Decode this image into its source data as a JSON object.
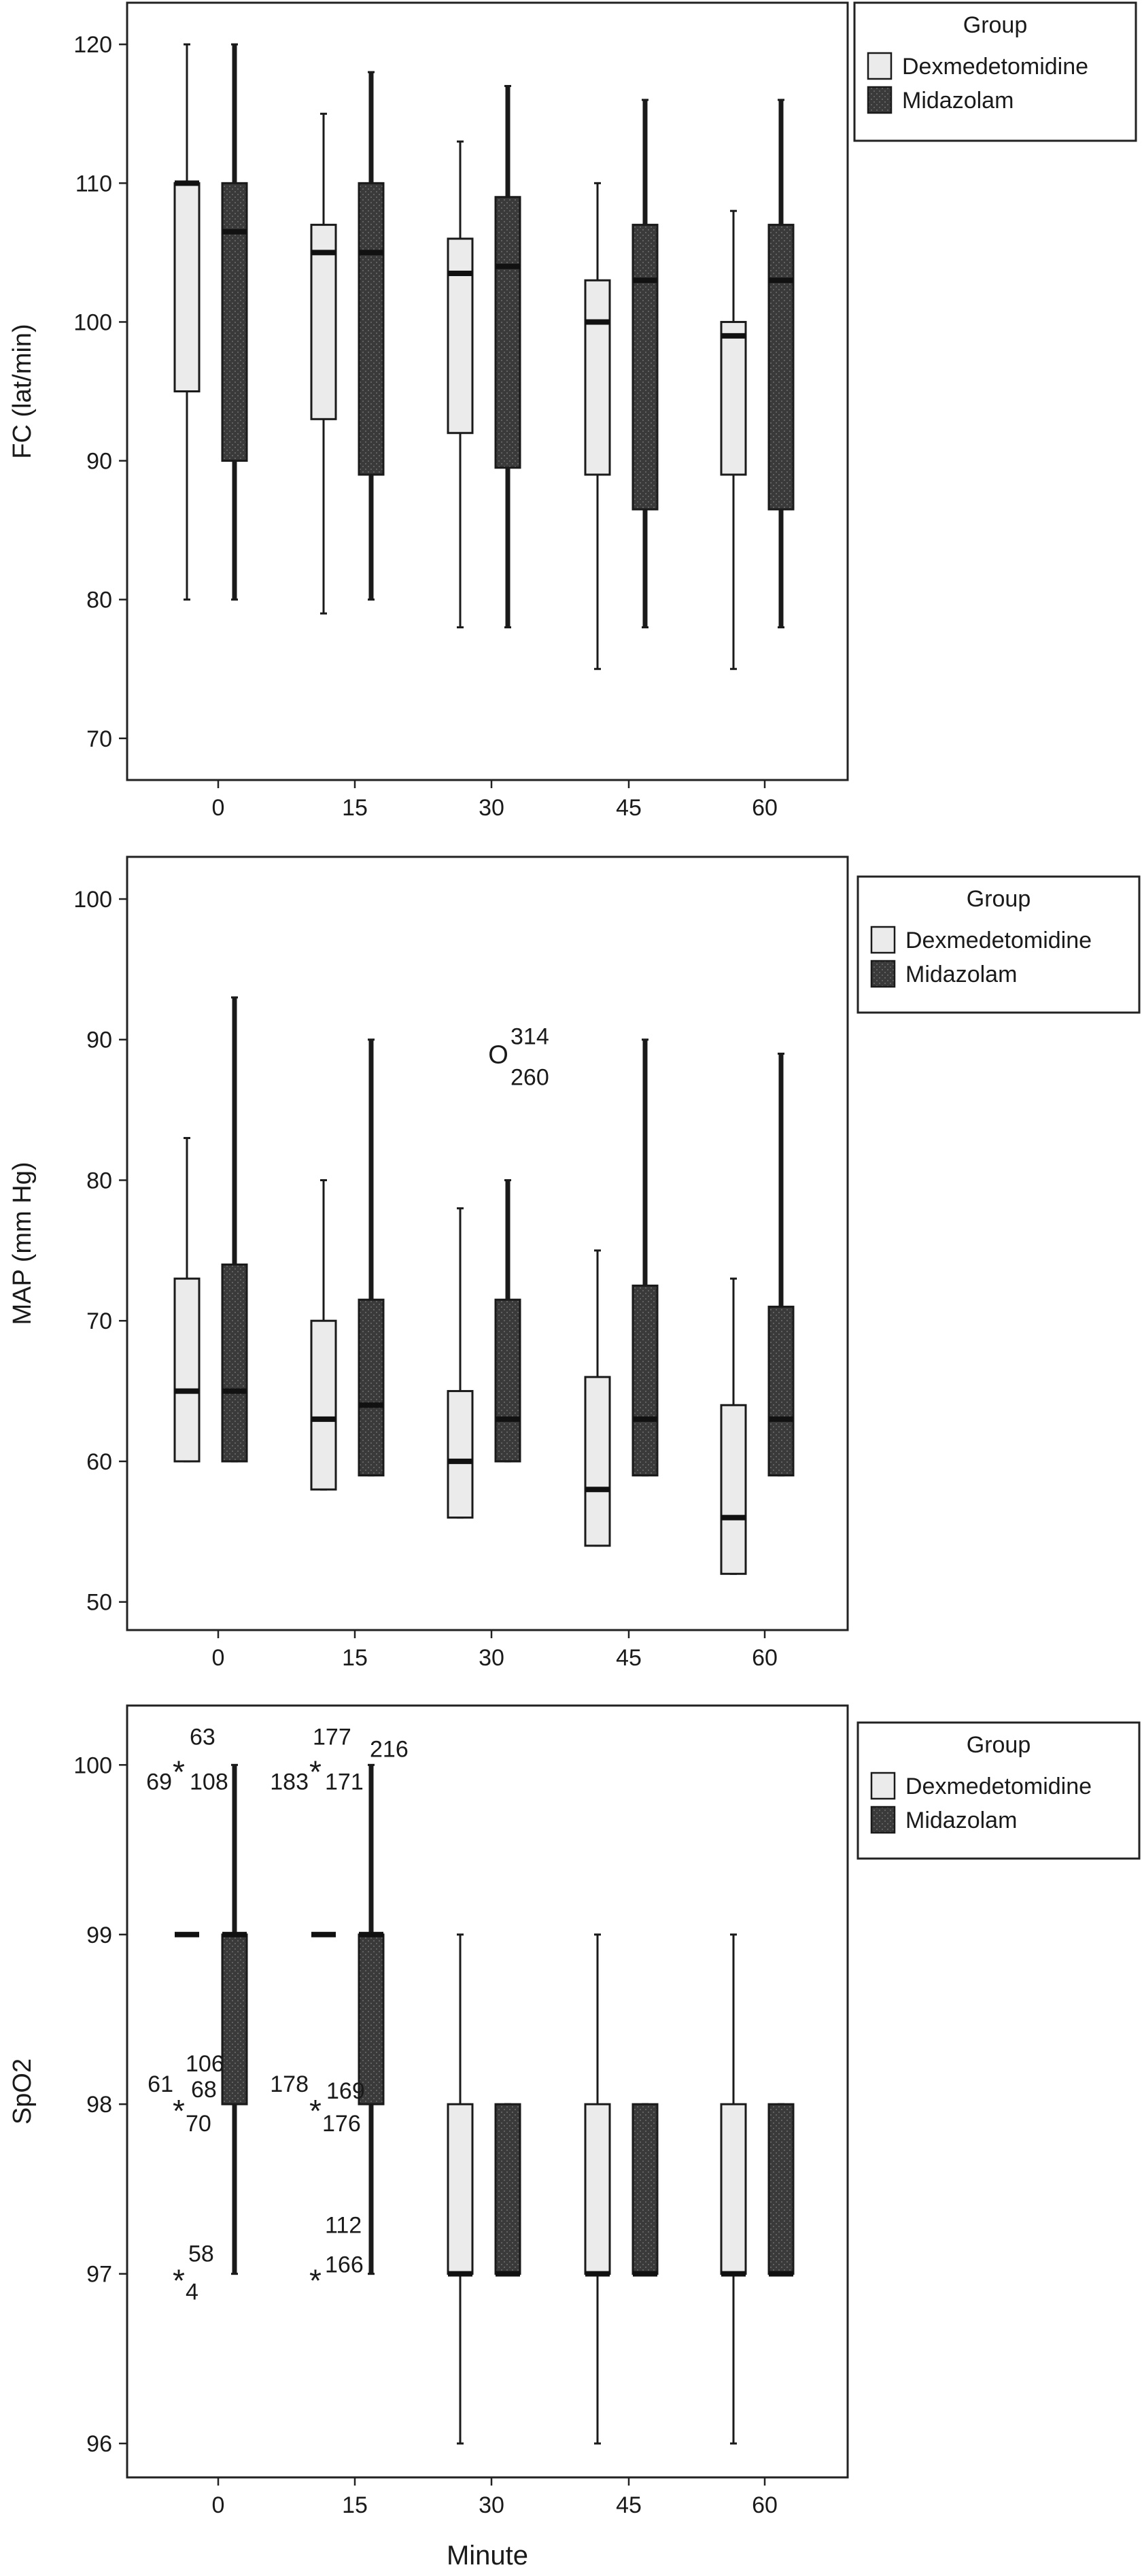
{
  "colors": {
    "dexmedetomidine": "#ebebeb",
    "midazolam": "#3a3a3a",
    "frame": "#222222"
  },
  "chart_data": [
    {
      "type": "boxplot",
      "ylabel": "FC (lat/min)",
      "xlabel": "",
      "categories": [
        "0",
        "15",
        "30",
        "45",
        "60"
      ],
      "ylim": [
        67,
        123
      ],
      "yticks": [
        70,
        80,
        90,
        100,
        110,
        120
      ],
      "legend": {
        "title": "Group",
        "position": "top-right",
        "entries": [
          "Dexmedetomidine",
          "Midazolam"
        ]
      },
      "series": [
        {
          "name": "Dexmedetomidine",
          "boxes": [
            {
              "min": 80,
              "q1": 95,
              "median": 110,
              "q3": 110,
              "max": 120
            },
            {
              "min": 79,
              "q1": 93,
              "median": 105,
              "q3": 107,
              "max": 115
            },
            {
              "min": 78,
              "q1": 92,
              "median": 103.5,
              "q3": 106,
              "max": 113
            },
            {
              "min": 75,
              "q1": 89,
              "median": 100,
              "q3": 103,
              "max": 110
            },
            {
              "min": 75,
              "q1": 89,
              "median": 99,
              "q3": 100,
              "max": 108
            }
          ]
        },
        {
          "name": "Midazolam",
          "boxes": [
            {
              "min": 80,
              "q1": 90,
              "median": 106.5,
              "q3": 110,
              "max": 120
            },
            {
              "min": 80,
              "q1": 89,
              "median": 105,
              "q3": 110,
              "max": 118
            },
            {
              "min": 78,
              "q1": 89.5,
              "median": 104,
              "q3": 109,
              "max": 117
            },
            {
              "min": 78,
              "q1": 86.5,
              "median": 103,
              "q3": 107,
              "max": 116
            },
            {
              "min": 78,
              "q1": 86.5,
              "median": 103,
              "q3": 107,
              "max": 116
            }
          ]
        }
      ],
      "outliers": []
    },
    {
      "type": "boxplot",
      "ylabel": "MAP (mm Hg)",
      "xlabel": "",
      "categories": [
        "0",
        "15",
        "30",
        "45",
        "60"
      ],
      "ylim": [
        48,
        103
      ],
      "yticks": [
        50,
        60,
        70,
        80,
        90,
        100
      ],
      "legend": {
        "title": "Group",
        "position": "top-right",
        "entries": [
          "Dexmedetomidine",
          "Midazolam"
        ]
      },
      "series": [
        {
          "name": "Dexmedetomidine",
          "boxes": [
            {
              "min": 60,
              "q1": 60,
              "median": 65,
              "q3": 73,
              "max": 83
            },
            {
              "min": 58,
              "q1": 58,
              "median": 63,
              "q3": 70,
              "max": 80
            },
            {
              "min": 56,
              "q1": 56,
              "median": 60,
              "q3": 65,
              "max": 78
            },
            {
              "min": 54,
              "q1": 54,
              "median": 58,
              "q3": 66,
              "max": 75
            },
            {
              "min": 52,
              "q1": 52,
              "median": 56,
              "q3": 64,
              "max": 73
            }
          ]
        },
        {
          "name": "Midazolam",
          "boxes": [
            {
              "min": 60,
              "q1": 60,
              "median": 65,
              "q3": 74,
              "max": 93
            },
            {
              "min": 59,
              "q1": 59,
              "median": 64,
              "q3": 71.5,
              "max": 90
            },
            {
              "min": 60,
              "q1": 60,
              "median": 63,
              "q3": 71.5,
              "max": 80
            },
            {
              "min": 59,
              "q1": 59,
              "median": 63,
              "q3": 72.5,
              "max": 90
            },
            {
              "min": 59,
              "q1": 59,
              "median": 63,
              "q3": 71,
              "max": 89
            }
          ]
        }
      ],
      "outliers": [
        {
          "category": "30",
          "series": "Midazolam",
          "value": 89,
          "marker": "O",
          "labels": [
            "314",
            "260"
          ]
        }
      ]
    },
    {
      "type": "boxplot",
      "ylabel": "SpO2",
      "xlabel": "Minute",
      "categories": [
        "0",
        "15",
        "30",
        "45",
        "60"
      ],
      "ylim": [
        95.8,
        100.35
      ],
      "yticks": [
        96,
        97,
        98,
        99,
        100
      ],
      "legend": {
        "title": "Group",
        "position": "top-right",
        "entries": [
          "Dexmedetomidine",
          "Midazolam"
        ]
      },
      "series": [
        {
          "name": "Dexmedetomidine",
          "boxes": [
            {
              "min": 99,
              "q1": 99,
              "median": 99,
              "q3": 99,
              "max": 99
            },
            {
              "min": 99,
              "q1": 99,
              "median": 99,
              "q3": 99,
              "max": 99
            },
            {
              "min": 96,
              "q1": 97,
              "median": 97,
              "q3": 98,
              "max": 99
            },
            {
              "min": 96,
              "q1": 97,
              "median": 97,
              "q3": 98,
              "max": 99
            },
            {
              "min": 96,
              "q1": 97,
              "median": 97,
              "q3": 98,
              "max": 99
            }
          ]
        },
        {
          "name": "Midazolam",
          "boxes": [
            {
              "min": 97,
              "q1": 98,
              "median": 99,
              "q3": 99,
              "max": 100
            },
            {
              "min": 97,
              "q1": 98,
              "median": 99,
              "q3": 99,
              "max": 100
            },
            {
              "min": 97,
              "q1": 97,
              "median": 97,
              "q3": 98,
              "max": 98
            },
            {
              "min": 97,
              "q1": 97,
              "median": 97,
              "q3": 98,
              "max": 98
            },
            {
              "min": 97,
              "q1": 97,
              "median": 97,
              "q3": 98,
              "max": 98
            }
          ]
        }
      ],
      "outliers": [
        {
          "category": "0",
          "series": "Dexmedetomidine",
          "value": 100,
          "marker": "*",
          "labels": [
            "63",
            "69",
            "108"
          ]
        },
        {
          "category": "0",
          "series": "Dexmedetomidine",
          "value": 98,
          "marker": "*",
          "labels": [
            "61",
            "106",
            "68",
            "70"
          ]
        },
        {
          "category": "0",
          "series": "Dexmedetomidine",
          "value": 97,
          "marker": "*",
          "labels": [
            "58",
            "4"
          ]
        },
        {
          "category": "15",
          "series": "Dexmedetomidine",
          "value": 100,
          "marker": "*",
          "labels": [
            "177",
            "216",
            "183",
            "171"
          ]
        },
        {
          "category": "15",
          "series": "Dexmedetomidine",
          "value": 98,
          "marker": "*",
          "labels": [
            "178",
            "169",
            "176"
          ]
        },
        {
          "category": "15",
          "series": "Dexmedetomidine",
          "value": 97,
          "marker": "*",
          "labels": [
            "112",
            "166"
          ]
        }
      ]
    }
  ]
}
